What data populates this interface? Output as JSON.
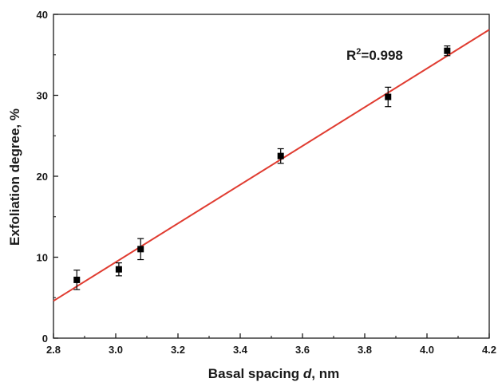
{
  "chart_data": {
    "type": "scatter",
    "title": "",
    "xlabel": {
      "prefix": "Basal spacing ",
      "italic": "d",
      "suffix": ", nm"
    },
    "ylabel": "Exfoliation degree, %",
    "xlim": [
      2.8,
      4.2
    ],
    "ylim": [
      0,
      40
    ],
    "x_ticks": [
      "2.8",
      "3.0",
      "3.2",
      "3.4",
      "3.6",
      "3.8",
      "4.0",
      "4.2"
    ],
    "y_ticks": [
      "0",
      "10",
      "20",
      "30",
      "40"
    ],
    "grid": false,
    "points": [
      {
        "x": 2.875,
        "y": 7.2,
        "err": 1.2
      },
      {
        "x": 3.01,
        "y": 8.5,
        "err": 0.8
      },
      {
        "x": 3.08,
        "y": 11.0,
        "err": 1.3
      },
      {
        "x": 3.53,
        "y": 22.5,
        "err": 0.9
      },
      {
        "x": 3.875,
        "y": 29.8,
        "err": 1.2
      },
      {
        "x": 4.065,
        "y": 35.5,
        "err": 0.6
      }
    ],
    "fit_line": {
      "x": [
        2.8,
        4.2
      ],
      "y": [
        4.6,
        38.1
      ],
      "color": "#e03c31"
    },
    "annotation": {
      "base": "R",
      "sup": "2",
      "rest": "=0.998"
    },
    "marker_color": "#000000"
  }
}
